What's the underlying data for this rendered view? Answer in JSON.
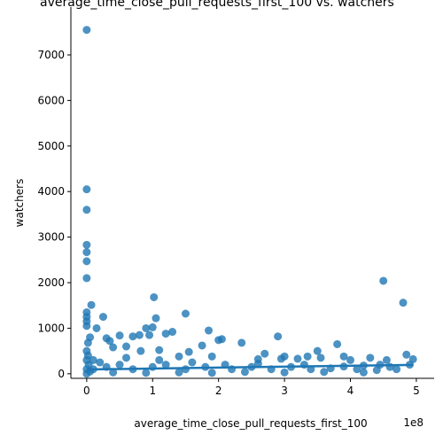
{
  "chart_data": {
    "type": "scatter",
    "title": "average_time_close_pull_requests_first_100 vs. watchers",
    "xlabel": "average_time_close_pull_requests_first_100",
    "ylabel": "watchers",
    "x_offset_label": "1e8",
    "color": "#1f77b4",
    "xlim": [
      -0.24,
      5.27
    ],
    "ylim": [
      -100,
      8050
    ],
    "xticks": [
      0,
      1,
      2,
      3,
      4,
      5
    ],
    "yticks": [
      0,
      1000,
      2000,
      3000,
      4000,
      5000,
      6000,
      7000
    ],
    "x": [
      0,
      0,
      0,
      0,
      0,
      0,
      0,
      0,
      0,
      0,
      0,
      0.07,
      0.02,
      0.05,
      0.15,
      0.25,
      0.3,
      0.35,
      0.4,
      0.5,
      0.6,
      0.7,
      0.8,
      0.82,
      0.9,
      0.95,
      1.02,
      1.05,
      1.0,
      1.1,
      1.2,
      1.3,
      1.4,
      1.5,
      1.55,
      1.75,
      1.85,
      1.9,
      2.0,
      2.05,
      2.35,
      2.6,
      2.7,
      2.9,
      2.95,
      3.0,
      3.2,
      3.35,
      3.5,
      3.55,
      3.8,
      3.9,
      4.0,
      4.2,
      4.3,
      4.45,
      4.5,
      4.55,
      4.8,
      4.85,
      4.95,
      0.1,
      0.2,
      0.3,
      0.5,
      0.7,
      1.0,
      1.2,
      1.5,
      1.8,
      2.2,
      2.5,
      2.8,
      3.1,
      3.4,
      3.7,
      4.1,
      4.4,
      4.7,
      0.05,
      0.4,
      0.9,
      1.4,
      1.9,
      2.4,
      3.0,
      3.6,
      4.2,
      0.02,
      0.03,
      0.1,
      0.6,
      1.1,
      1.6,
      2.1,
      2.6,
      3.3,
      3.9,
      4.6,
      4.9,
      0,
      0,
      0,
      0
    ],
    "y": [
      7550,
      4050,
      3600,
      2830,
      2670,
      2470,
      2100,
      1350,
      1250,
      1150,
      1050,
      1510,
      680,
      800,
      1000,
      1250,
      780,
      720,
      580,
      840,
      600,
      820,
      850,
      500,
      1000,
      850,
      1680,
      1220,
      1020,
      520,
      880,
      920,
      380,
      1320,
      480,
      620,
      950,
      380,
      740,
      760,
      680,
      320,
      440,
      820,
      330,
      380,
      330,
      380,
      500,
      350,
      650,
      380,
      300,
      180,
      350,
      200,
      2040,
      300,
      1560,
      420,
      320,
      300,
      250,
      150,
      200,
      100,
      150,
      200,
      100,
      150,
      100,
      150,
      100,
      150,
      100,
      120,
      100,
      80,
      100,
      50,
      30,
      20,
      30,
      20,
      40,
      30,
      40,
      30,
      400,
      200,
      100,
      350,
      300,
      250,
      200,
      220,
      200,
      160,
      150,
      200,
      500,
      300,
      100,
      0
    ],
    "regression": {
      "x": [
        0,
        4.95
      ],
      "y": [
        95,
        195
      ]
    }
  }
}
